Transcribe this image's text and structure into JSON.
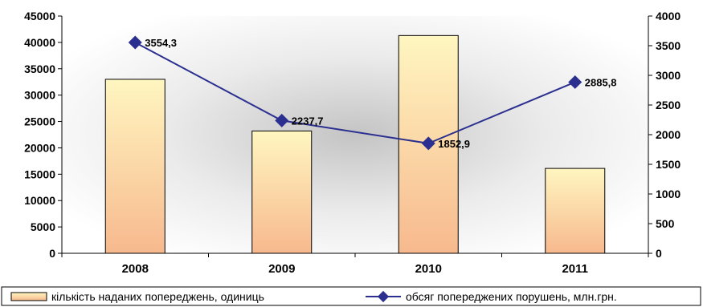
{
  "chart_data": {
    "type": "bar",
    "categories": [
      "2008",
      "2009",
      "2010",
      "2011"
    ],
    "series": [
      {
        "name": "кількість наданих попереджень, одиниць",
        "type": "bar",
        "axis": "left",
        "values": [
          33000,
          23200,
          41300,
          16100
        ]
      },
      {
        "name": "обсяг попереджених порушень, млн.грн.",
        "type": "line",
        "axis": "right",
        "values": [
          3554.3,
          2237.7,
          1852.9,
          2885.8
        ],
        "labels": [
          "3554,3",
          "2237,7",
          "1852,9",
          "2885,8"
        ]
      }
    ],
    "ylim_left": [
      0,
      45000
    ],
    "ylim_right": [
      0,
      4000
    ],
    "yticks_left": [
      "0",
      "5000",
      "10000",
      "15000",
      "20000",
      "25000",
      "30000",
      "35000",
      "40000",
      "45000"
    ],
    "yticks_right": [
      "0",
      "500",
      "1000",
      "1500",
      "2000",
      "2500",
      "3000",
      "3500",
      "4000"
    ],
    "legend_position": "bottom",
    "grid": false
  },
  "colors": {
    "bar_fill_top": "#fff6c0",
    "bar_fill_bottom": "#f7b98e",
    "line": "#2b2f8f"
  }
}
